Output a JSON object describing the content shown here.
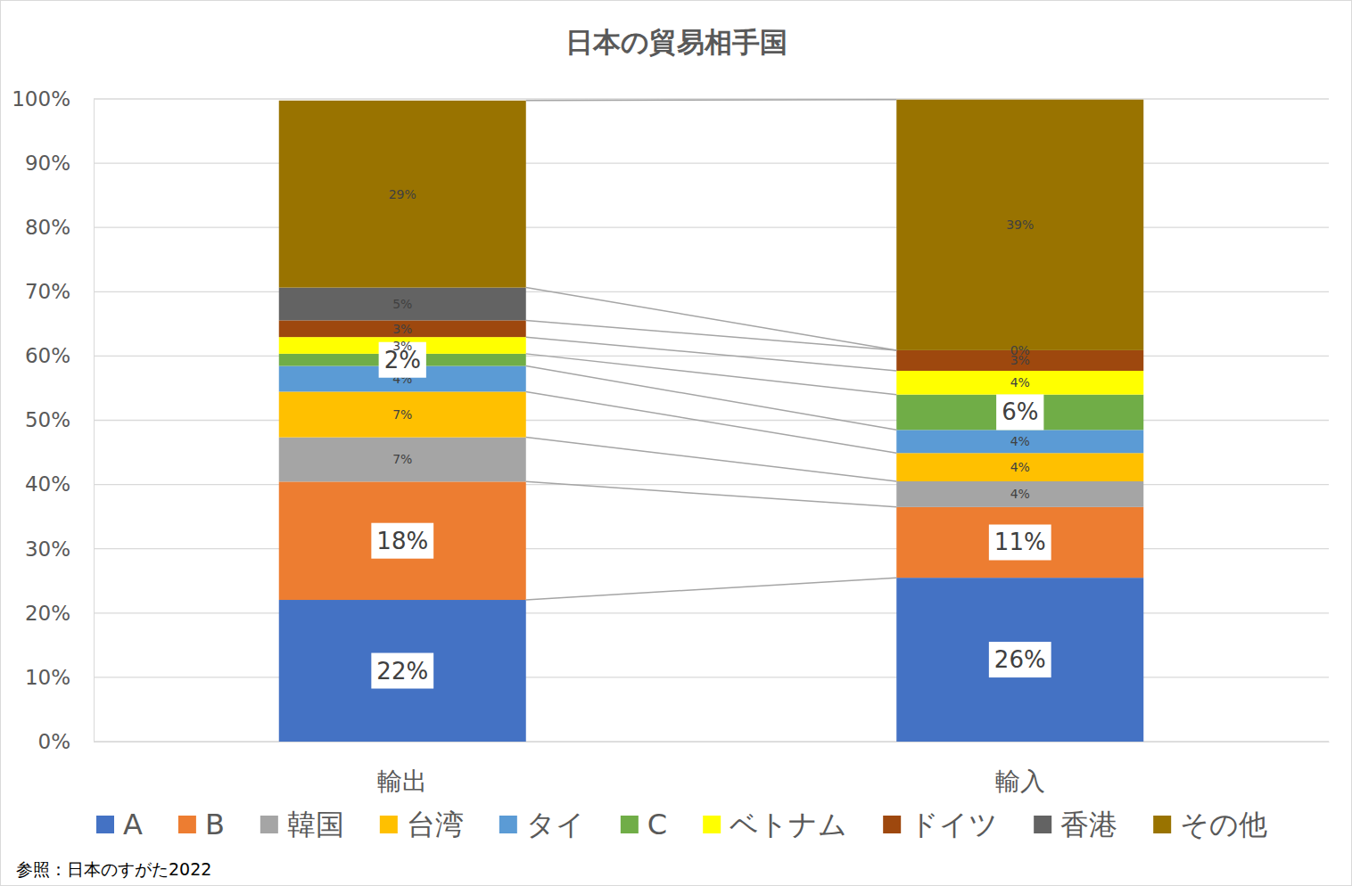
{
  "chart_data": {
    "type": "bar",
    "title": "日本の貿易相手国",
    "annotations": [
      "参照：日本のすがた2022"
    ],
    "categories": [
      "輸出",
      "輸入"
    ],
    "stacked": true,
    "data_labels": true,
    "grid": true,
    "legend": "bottom",
    "ylim": [
      0,
      100
    ],
    "yticks": [
      {
        "value": 0,
        "label": "0%"
      },
      {
        "value": 10,
        "label": "10%"
      },
      {
        "value": 20,
        "label": "20%"
      },
      {
        "value": 30,
        "label": "30%"
      },
      {
        "value": 40,
        "label": "40%"
      },
      {
        "value": 50,
        "label": "50%"
      },
      {
        "value": 60,
        "label": "60%"
      },
      {
        "value": 70,
        "label": "70%"
      },
      {
        "value": 80,
        "label": "80%"
      },
      {
        "value": 90,
        "label": "90%"
      },
      {
        "value": 100,
        "label": "100%"
      }
    ],
    "series": [
      {
        "name": "A",
        "color": "#4472c4",
        "values": [
          22.05,
          25.5
        ],
        "value_labels": [
          "22%",
          "26%"
        ]
      },
      {
        "name": "B",
        "color": "#ed7d31",
        "values": [
          18.4,
          11.0
        ],
        "value_labels": [
          "18%",
          "11%"
        ]
      },
      {
        "name": "韓国",
        "color": "#a5a5a5",
        "values": [
          6.9,
          4.0
        ],
        "value_labels": [
          "7%",
          "4%"
        ]
      },
      {
        "name": "台湾",
        "color": "#ffc000",
        "values": [
          7.1,
          4.4
        ],
        "value_labels": [
          "7%",
          "4%"
        ]
      },
      {
        "name": "タイ",
        "color": "#5b9bd5",
        "values": [
          4.0,
          3.6
        ],
        "value_labels": [
          "4%",
          "4%"
        ]
      },
      {
        "name": "C",
        "color": "#70ad47",
        "values": [
          1.9,
          5.5
        ],
        "value_labels": [
          "2%",
          "6%"
        ]
      },
      {
        "name": "ベトナム",
        "color": "#ffff00",
        "values": [
          2.6,
          3.7
        ],
        "value_labels": [
          "3%",
          "4%"
        ]
      },
      {
        "name": "ドイツ",
        "color": "#9e480e",
        "values": [
          2.6,
          3.2
        ],
        "value_labels": [
          "3%",
          "3%"
        ]
      },
      {
        "name": "香港",
        "color": "#636363",
        "values": [
          5.1,
          0
        ],
        "value_labels": [
          "5%",
          "0%"
        ]
      },
      {
        "name": "その他",
        "color": "#997300",
        "values": [
          29.1,
          39.0
        ],
        "value_labels": [
          "29%",
          "39%"
        ]
      }
    ]
  }
}
